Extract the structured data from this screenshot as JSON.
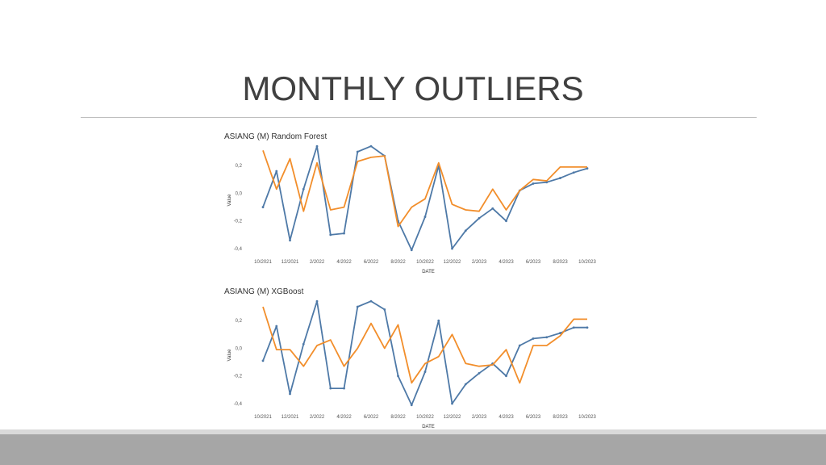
{
  "slide": {
    "title": "MONTHLY OUTLIERS"
  },
  "colors": {
    "series_blue": "#4e79a7",
    "series_orange": "#f28e2b",
    "title_text": "#404040",
    "rule": "#bfbfbf"
  },
  "chart_data": [
    {
      "type": "line",
      "title": "ASIANG (M) Random Forest",
      "xlabel": "DATE",
      "ylabel": "Value",
      "ylim": [
        -0.4,
        0.3
      ],
      "yticks": [
        "0,2",
        "0,0",
        "-0,2",
        "-0,4"
      ],
      "ytick_values": [
        0.2,
        0.0,
        -0.2,
        -0.4
      ],
      "xtick_labels": [
        "10/2021",
        "12/2021",
        "2/2022",
        "4/2022",
        "6/2022",
        "8/2022",
        "10/2022",
        "12/2022",
        "2/2023",
        "4/2023",
        "6/2023",
        "8/2023",
        "10/2023"
      ],
      "n_points": 25,
      "grid": false,
      "legend": "none",
      "series": [
        {
          "color": "#4e79a7",
          "values": [
            -0.1,
            0.16,
            -0.34,
            0.03,
            0.34,
            -0.3,
            -0.29,
            0.3,
            0.34,
            0.27,
            -0.2,
            -0.41,
            -0.17,
            0.2,
            -0.4,
            -0.27,
            -0.18,
            -0.11,
            -0.2,
            0.02,
            0.07,
            0.08,
            0.11,
            0.15,
            0.18
          ]
        },
        {
          "color": "#f28e2b",
          "values": [
            0.31,
            0.03,
            0.25,
            -0.13,
            0.22,
            -0.12,
            -0.1,
            0.23,
            0.26,
            0.27,
            -0.24,
            -0.1,
            -0.04,
            0.22,
            -0.08,
            -0.12,
            -0.13,
            0.03,
            -0.12,
            0.02,
            0.1,
            0.09,
            0.19,
            0.19,
            0.19
          ]
        }
      ]
    },
    {
      "type": "line",
      "title": "ASIANG (M) XGBoost",
      "xlabel": "DATE",
      "ylabel": "Value",
      "ylim": [
        -0.4,
        0.3
      ],
      "yticks": [
        "0,2",
        "0,0",
        "-0,2",
        "-0,4"
      ],
      "ytick_values": [
        0.2,
        0.0,
        -0.2,
        -0.4
      ],
      "xtick_labels": [
        "10/2021",
        "12/2021",
        "2/2022",
        "4/2022",
        "6/2022",
        "8/2022",
        "10/2022",
        "12/2022",
        "2/2023",
        "4/2023",
        "6/2023",
        "8/2023",
        "10/2023"
      ],
      "n_points": 25,
      "grid": false,
      "legend": "none",
      "series": [
        {
          "color": "#4e79a7",
          "values": [
            -0.09,
            0.16,
            -0.33,
            0.03,
            0.34,
            -0.29,
            -0.29,
            0.3,
            0.34,
            0.28,
            -0.2,
            -0.41,
            -0.17,
            0.2,
            -0.4,
            -0.26,
            -0.18,
            -0.11,
            -0.2,
            0.02,
            0.07,
            0.08,
            0.11,
            0.15,
            0.15
          ]
        },
        {
          "color": "#f28e2b",
          "values": [
            0.3,
            -0.01,
            -0.01,
            -0.13,
            0.02,
            0.06,
            -0.13,
            0.0,
            0.18,
            0.0,
            0.17,
            -0.25,
            -0.11,
            -0.06,
            0.1,
            -0.11,
            -0.13,
            -0.12,
            -0.01,
            -0.25,
            0.02,
            0.02,
            0.09,
            0.21,
            0.21
          ]
        }
      ]
    }
  ]
}
